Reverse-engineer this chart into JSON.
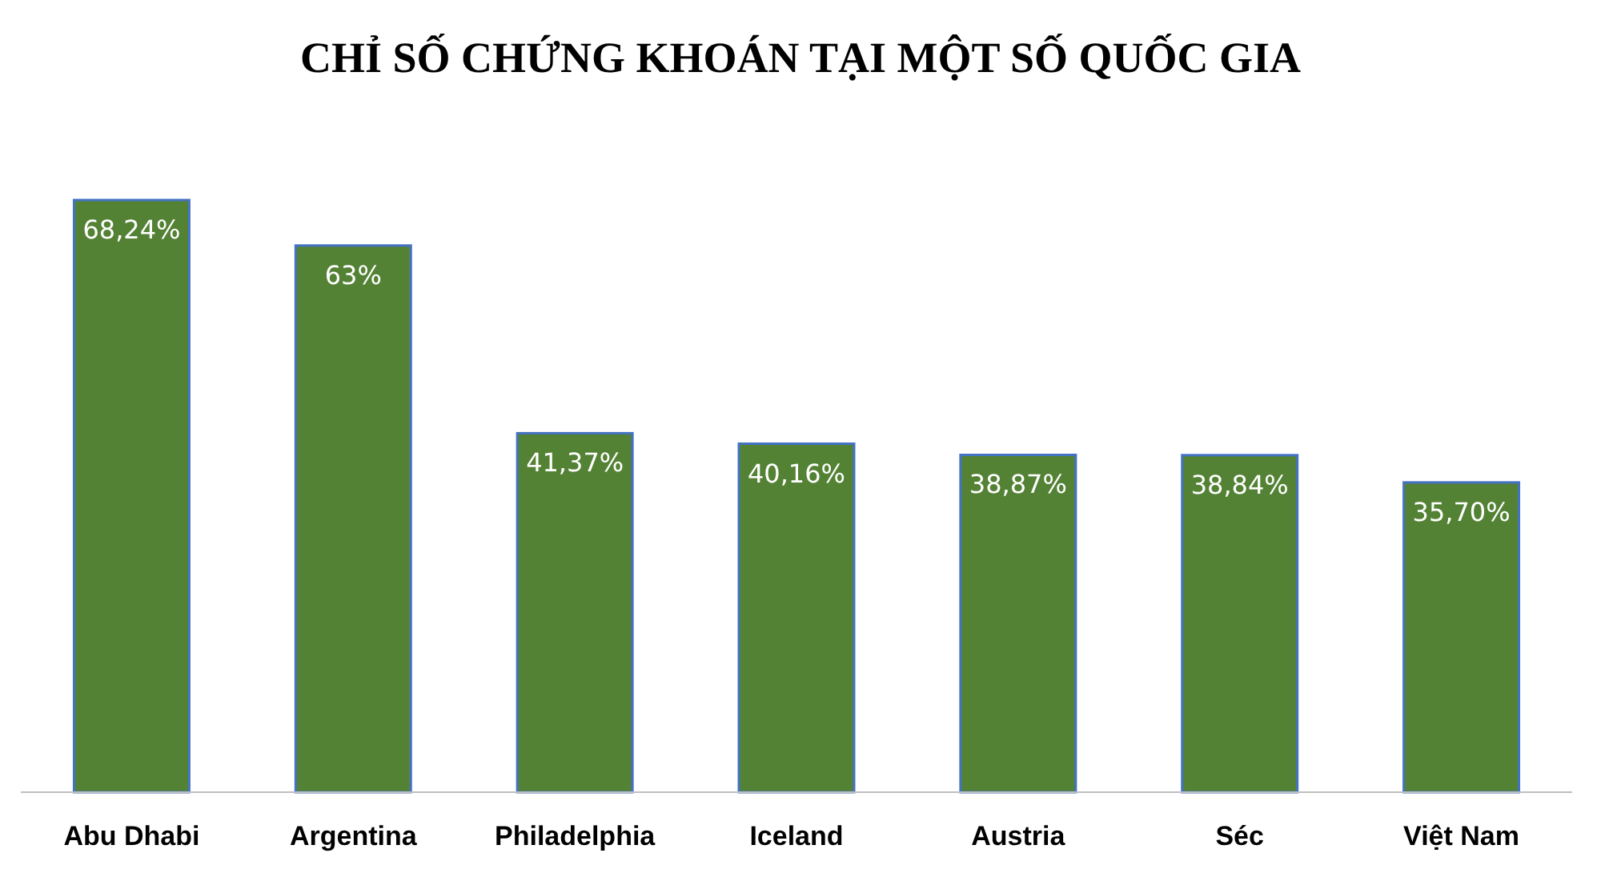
{
  "chart_data": {
    "type": "bar",
    "title": "CHỈ SỐ CHỨNG KHOÁN TẠI MỘT SỐ QUỐC GIA",
    "categories": [
      "Abu Dhabi",
      "Argentina",
      "Philadelphia",
      "Iceland",
      "Austria",
      "Séc",
      "Việt Nam"
    ],
    "values": [
      68.24,
      63,
      41.37,
      40.16,
      38.87,
      38.84,
      35.7
    ],
    "value_labels": [
      "68,24%",
      "63%",
      "41,37%",
      "40,16%",
      "38,87%",
      "38,84%",
      "35,70%"
    ],
    "color": "#548235"
  }
}
